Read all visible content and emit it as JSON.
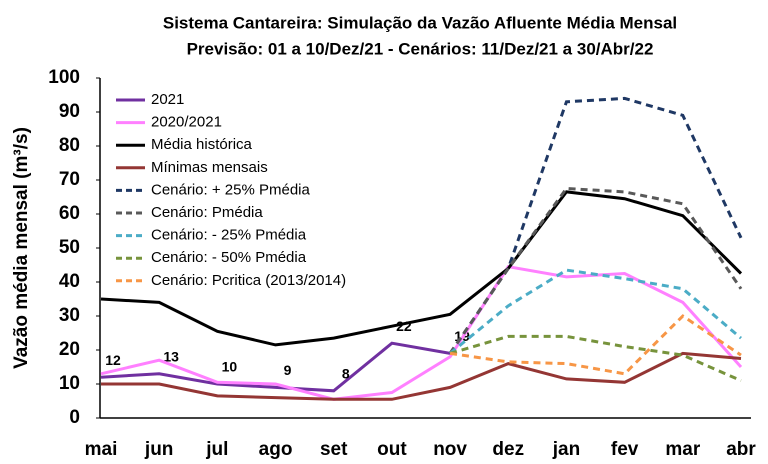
{
  "chart_data": {
    "type": "line",
    "title": "Sistema Cantareira: Simulação da Vazão Afluente Média Mensal",
    "subtitle": "Previsão: 01 a 10/Dez/21 - Cenários: 11/Dez/21 a 30/Abr/22",
    "y_label": "Vazão média mensal (m³/s)",
    "categories": [
      "mai",
      "jun",
      "jul",
      "ago",
      "set",
      "out",
      "nov",
      "dez",
      "jan",
      "fev",
      "mar",
      "abr"
    ],
    "ylim": [
      0,
      100
    ],
    "yticks": [
      0,
      10,
      20,
      30,
      40,
      50,
      60,
      70,
      80,
      90,
      100
    ],
    "legend": "upper left",
    "grid": false,
    "series": [
      {
        "name": "2021",
        "color": "#7030a0",
        "dash": false,
        "data_labels": true,
        "values": [
          12,
          13,
          10,
          9,
          8,
          22,
          19,
          null,
          null,
          null,
          null,
          null
        ]
      },
      {
        "name": "2020/2021",
        "color": "#ff80ff",
        "dash": false,
        "values": [
          13,
          17,
          10.5,
          10,
          5.5,
          7.5,
          18,
          44.5,
          41.5,
          42.5,
          34,
          15
        ]
      },
      {
        "name": "Média histórica",
        "color": "#000000",
        "dash": false,
        "values": [
          35,
          34,
          25.5,
          21.5,
          23.5,
          27,
          30.5,
          44,
          66.5,
          64.5,
          59.5,
          42.5
        ]
      },
      {
        "name": "Mínimas mensais",
        "color": "#943634",
        "dash": false,
        "values": [
          10,
          10,
          6.5,
          6,
          5.5,
          5.5,
          9,
          16,
          11.5,
          10.5,
          19,
          17.5
        ]
      },
      {
        "name": "Cenário: + 25% Pmédia",
        "color": "#1f3864",
        "dash": true,
        "values": [
          null,
          null,
          null,
          null,
          null,
          null,
          19,
          44,
          93,
          94,
          89,
          53
        ]
      },
      {
        "name": "Cenário: Pmédia",
        "color": "#595959",
        "dash": true,
        "values": [
          null,
          null,
          null,
          null,
          null,
          null,
          19,
          44,
          67.5,
          66.5,
          63,
          38
        ]
      },
      {
        "name": "Cenário: - 25% Pmédia",
        "color": "#4bacc6",
        "dash": true,
        "values": [
          null,
          null,
          null,
          null,
          null,
          null,
          19,
          33,
          43.5,
          41,
          38,
          23.5
        ]
      },
      {
        "name": "Cenário: - 50% Pmédia",
        "color": "#77933c",
        "dash": true,
        "values": [
          null,
          null,
          null,
          null,
          null,
          null,
          19,
          24,
          24,
          21,
          18.5,
          11
        ]
      },
      {
        "name": "Cenário: Pcritica (2013/2014)",
        "color": "#f79646",
        "dash": true,
        "values": [
          null,
          null,
          null,
          null,
          null,
          null,
          19,
          16.5,
          16,
          13,
          30,
          18.5
        ]
      }
    ]
  }
}
